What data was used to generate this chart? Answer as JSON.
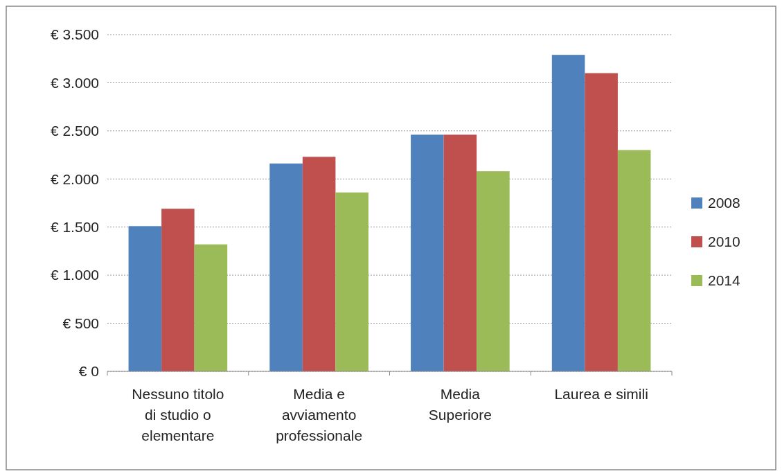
{
  "chart_data": {
    "type": "bar",
    "categories": [
      "Nessuno titolo\ndi studio o\nelementare",
      "Media e\navviamento\nprofessionale",
      "Media\nSuperiore",
      "Laurea e simili"
    ],
    "series": [
      {
        "name": "2008",
        "color": "#4f81bd",
        "values": [
          1510,
          2160,
          2460,
          3290
        ]
      },
      {
        "name": "2010",
        "color": "#c0504d",
        "values": [
          1690,
          2230,
          2460,
          3100
        ]
      },
      {
        "name": "2014",
        "color": "#9bbb59",
        "values": [
          1320,
          1860,
          2080,
          2300
        ]
      }
    ],
    "ylim": [
      0,
      3500
    ],
    "yticks": [
      {
        "value": 0,
        "label": "€ 0"
      },
      {
        "value": 500,
        "label": "€ 500"
      },
      {
        "value": 1000,
        "label": "€ 1.000"
      },
      {
        "value": 1500,
        "label": "€ 1.500"
      },
      {
        "value": 2000,
        "label": "€ 2.000"
      },
      {
        "value": 2500,
        "label": "€ 2.500"
      },
      {
        "value": 3000,
        "label": "€ 3.000"
      },
      {
        "value": 3500,
        "label": "€ 3.500"
      }
    ],
    "grid": "y",
    "legend": "right"
  }
}
